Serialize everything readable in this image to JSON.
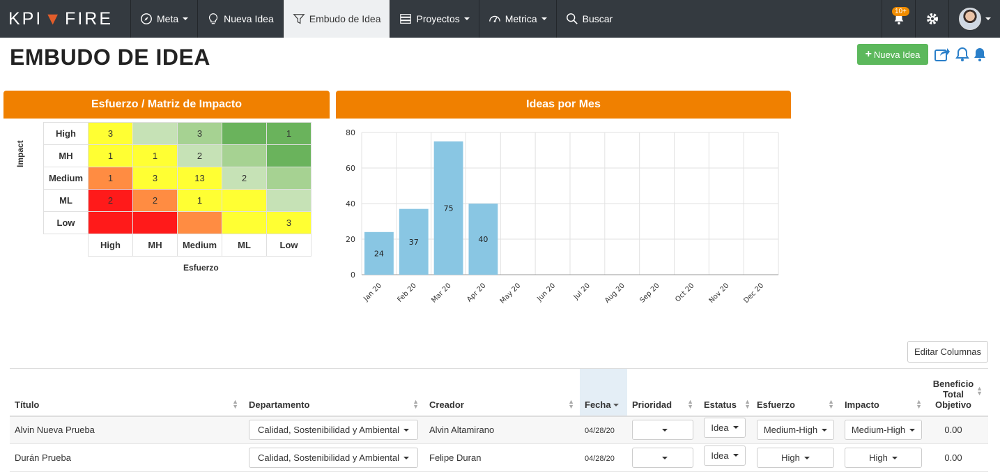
{
  "nav": {
    "brand_left": "KPI",
    "brand_right": "FIRE",
    "items": [
      {
        "label": "Meta",
        "icon": "compass-icon",
        "caret": true
      },
      {
        "label": "Nueva Idea",
        "icon": "lightbulb-icon",
        "caret": false
      },
      {
        "label": "Embudo de Idea",
        "icon": "funnel-icon",
        "caret": false,
        "active": true
      },
      {
        "label": "Proyectos",
        "icon": "projects-icon",
        "caret": true
      },
      {
        "label": "Metrica",
        "icon": "gauge-icon",
        "caret": true
      },
      {
        "label": "Buscar",
        "icon": "search-icon",
        "caret": false
      }
    ],
    "notif_badge": "10+"
  },
  "page": {
    "title": "EMBUDO DE IDEA",
    "new_idea_button": "Nueva Idea"
  },
  "matrix": {
    "title": "Esfuerzo / Matriz de Impacto",
    "y_axis": "Impact",
    "x_axis": "Esfuerzo",
    "rows": [
      "High",
      "MH",
      "Medium",
      "ML",
      "Low"
    ],
    "cols": [
      "High",
      "MH",
      "Medium",
      "ML",
      "Low"
    ],
    "values": [
      [
        "3",
        "",
        "3",
        "",
        "1"
      ],
      [
        "1",
        "1",
        "2",
        "",
        ""
      ],
      [
        "1",
        "3",
        "13",
        "2",
        ""
      ],
      [
        "2",
        "2",
        "1",
        "",
        ""
      ],
      [
        "",
        "",
        "",
        "",
        "3"
      ]
    ],
    "colors": [
      [
        "#ffff33",
        "#c6e2b6",
        "#a6d292",
        "#6ab35c",
        "#6ab35c"
      ],
      [
        "#ffff33",
        "#ffff33",
        "#c6e2b6",
        "#a6d292",
        "#6ab35c"
      ],
      [
        "#ff8c42",
        "#ffff33",
        "#ffff33",
        "#c6e2b6",
        "#a6d292"
      ],
      [
        "#ff1a1a",
        "#ff8c42",
        "#ffff33",
        "#ffff33",
        "#c6e2b6"
      ],
      [
        "#ff1a1a",
        "#ff1a1a",
        "#ff8c42",
        "#ffff33",
        "#ffff33"
      ]
    ]
  },
  "chart_data": {
    "type": "bar",
    "title": "Ideas por Mes",
    "categories": [
      "Jan 20",
      "Feb 20",
      "Mar 20",
      "Apr 20",
      "May 20",
      "Jun 20",
      "Jul 20",
      "Aug 20",
      "Sep 20",
      "Oct 20",
      "Nov 20",
      "Dec 20"
    ],
    "values": [
      24,
      37,
      75,
      40,
      0,
      0,
      0,
      0,
      0,
      0,
      0,
      0
    ],
    "ylim": [
      0,
      80
    ],
    "yticks": [
      0,
      20,
      40,
      60,
      80
    ],
    "grid": true,
    "color": "#89c6e3"
  },
  "table": {
    "edit_columns": "Editar Columnas",
    "columns": [
      "Título",
      "Departamento",
      "Creador",
      "Fecha",
      "Prioridad",
      "Estatus",
      "Esfuerzo",
      "Impacto",
      "Beneficio Total Objetivo"
    ],
    "rows": [
      {
        "titulo": "Alvin Nueva Prueba",
        "departamento": "Calidad, Sostenibilidad y Ambiental",
        "creador": "Alvin Altamirano",
        "fecha": "04/28/20",
        "prioridad": "",
        "estatus": "Idea",
        "esfuerzo": "Medium-High",
        "impacto": "Medium-High",
        "beneficio": "0.00"
      },
      {
        "titulo": "Durán Prueba",
        "departamento": "Calidad, Sostenibilidad y Ambiental",
        "creador": "Felipe Duran",
        "fecha": "04/28/20",
        "prioridad": "",
        "estatus": "Idea",
        "esfuerzo": "High",
        "impacto": "High",
        "beneficio": "0.00"
      }
    ]
  }
}
